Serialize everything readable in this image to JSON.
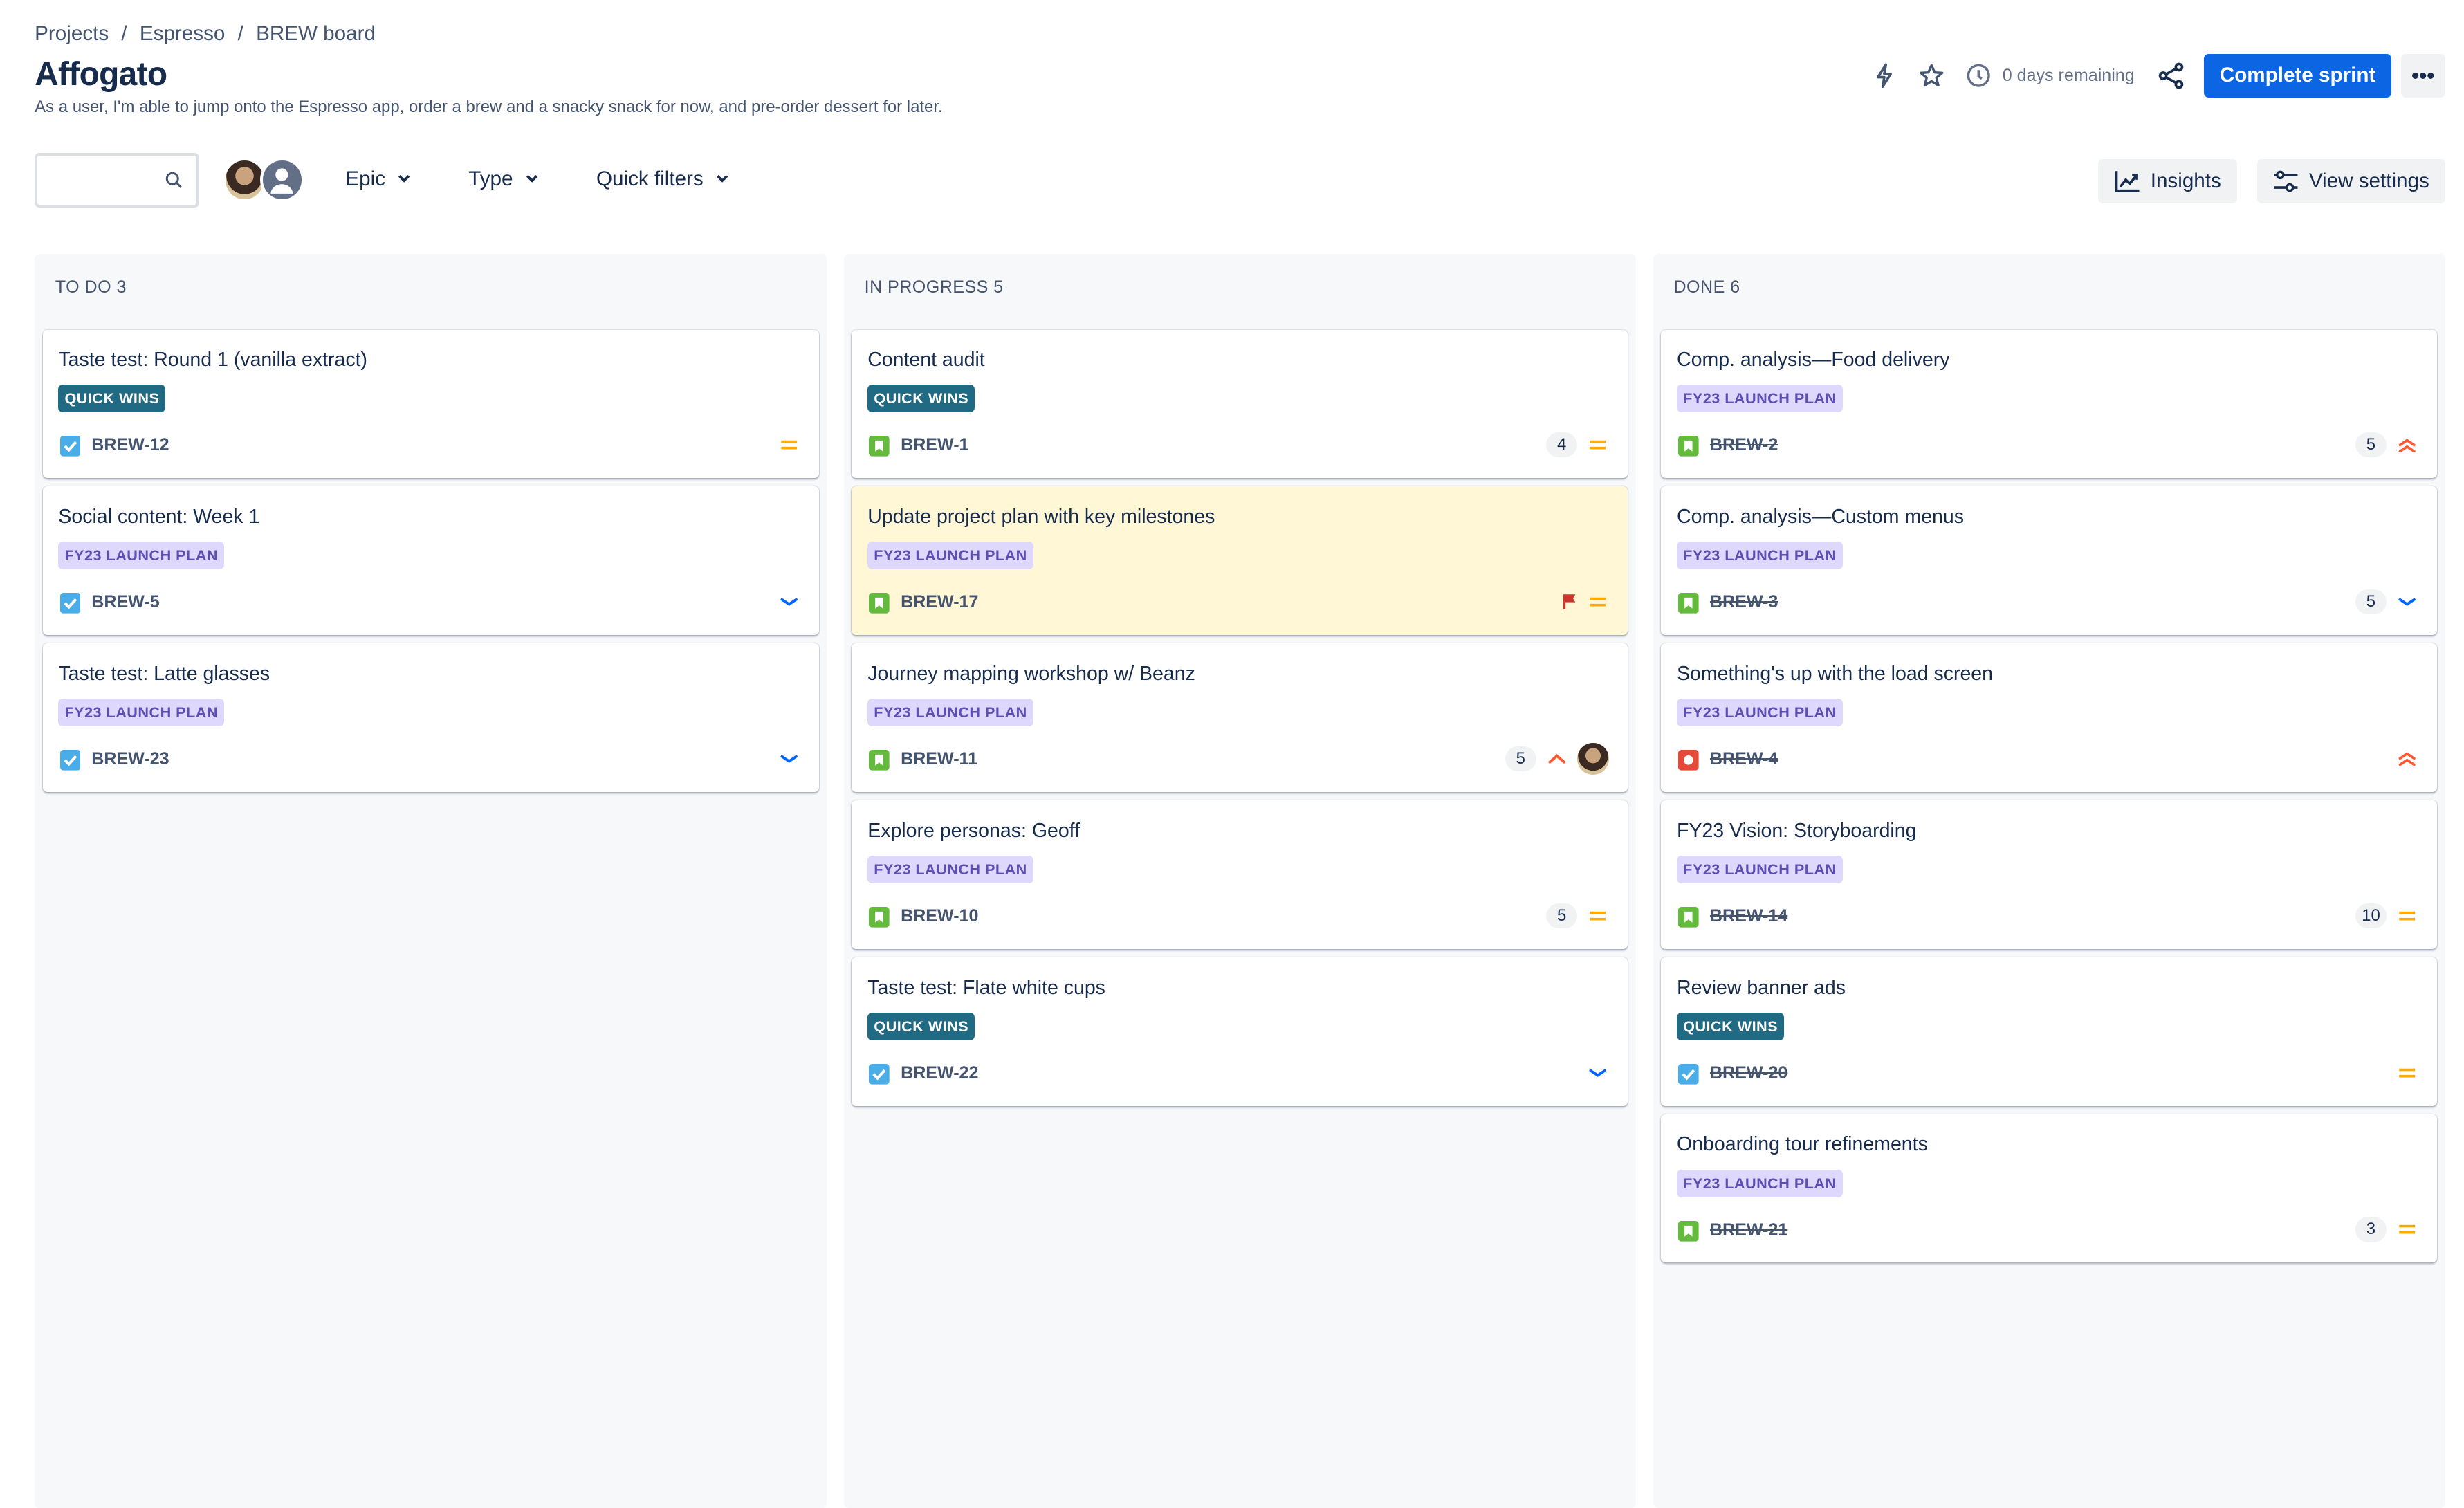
{
  "breadcrumb": [
    "Projects",
    "Espresso",
    "BREW board"
  ],
  "breadcrumb_sep": "/",
  "title": "Affogato",
  "description": "As a user, I'm able to jump onto the Espresso app, order a brew and a snacky snack for now, and pre-order dessert for later.",
  "header": {
    "days_remaining": "0 days remaining",
    "complete_sprint": "Complete sprint",
    "more": "•••"
  },
  "toolbar": {
    "search_value": "",
    "filters": [
      "Epic",
      "Type",
      "Quick filters"
    ],
    "insights": "Insights",
    "view_settings": "View settings"
  },
  "colors": {
    "primary": "#0c66e4",
    "quick_wins": "#206a83",
    "fy23": "#dfd8fd",
    "story": "#63ba3c",
    "task": "#4bade8",
    "bug": "#e5493a",
    "medium": "#ffab00",
    "low": "#0065ff",
    "high": "#ff5630",
    "flag_bg": "#fff7d6"
  },
  "columns": [
    {
      "label": "TO DO 3",
      "cards": [
        {
          "title": "Taste test: Round 1 (vanilla extract)",
          "epic": "QUICK WINS",
          "key": "BREW-12",
          "type": "task",
          "priority": "medium",
          "estimate": "",
          "flagged": false,
          "assignee": false,
          "done": false
        },
        {
          "title": "Social content: Week 1",
          "epic": "FY23 LAUNCH PLAN",
          "key": "BREW-5",
          "type": "task",
          "priority": "low",
          "estimate": "",
          "flagged": false,
          "assignee": false,
          "done": false
        },
        {
          "title": "Taste test: Latte glasses",
          "epic": "FY23 LAUNCH PLAN",
          "key": "BREW-23",
          "type": "task",
          "priority": "low",
          "estimate": "",
          "flagged": false,
          "assignee": false,
          "done": false
        }
      ]
    },
    {
      "label": "IN PROGRESS 5",
      "cards": [
        {
          "title": "Content audit",
          "epic": "QUICK WINS",
          "key": "BREW-1",
          "type": "story",
          "priority": "medium",
          "estimate": "4",
          "flagged": false,
          "assignee": false,
          "done": false
        },
        {
          "title": "Update project plan with key milestones",
          "epic": "FY23 LAUNCH PLAN",
          "key": "BREW-17",
          "type": "story",
          "priority": "medium",
          "estimate": "",
          "flagged": true,
          "assignee": false,
          "done": false
        },
        {
          "title": "Journey mapping workshop w/ Beanz",
          "epic": "FY23 LAUNCH PLAN",
          "key": "BREW-11",
          "type": "story",
          "priority": "high",
          "estimate": "5",
          "flagged": false,
          "assignee": true,
          "done": false
        },
        {
          "title": "Explore personas: Geoff",
          "epic": "FY23 LAUNCH PLAN",
          "key": "BREW-10",
          "type": "story",
          "priority": "medium",
          "estimate": "5",
          "flagged": false,
          "assignee": false,
          "done": false
        },
        {
          "title": "Taste test: Flate white cups",
          "epic": "QUICK WINS",
          "key": "BREW-22",
          "type": "task",
          "priority": "low",
          "estimate": "",
          "flagged": false,
          "assignee": false,
          "done": false
        }
      ]
    },
    {
      "label": "DONE 6",
      "cards": [
        {
          "title": "Comp. analysis—Food delivery",
          "epic": "FY23 LAUNCH PLAN",
          "key": "BREW-2",
          "type": "story",
          "priority": "highest",
          "estimate": "5",
          "flagged": false,
          "assignee": false,
          "done": true
        },
        {
          "title": "Comp. analysis—Custom menus",
          "epic": "FY23 LAUNCH PLAN",
          "key": "BREW-3",
          "type": "story",
          "priority": "low",
          "estimate": "5",
          "flagged": false,
          "assignee": false,
          "done": true
        },
        {
          "title": "Something's up with the load screen",
          "epic": "FY23 LAUNCH PLAN",
          "key": "BREW-4",
          "type": "bug",
          "priority": "highest",
          "estimate": "",
          "flagged": false,
          "assignee": false,
          "done": true
        },
        {
          "title": "FY23 Vision: Storyboarding",
          "epic": "FY23 LAUNCH PLAN",
          "key": "BREW-14",
          "type": "story",
          "priority": "medium",
          "estimate": "10",
          "flagged": false,
          "assignee": false,
          "done": true
        },
        {
          "title": "Review banner ads",
          "epic": "QUICK WINS",
          "key": "BREW-20",
          "type": "task",
          "priority": "medium",
          "estimate": "",
          "flagged": false,
          "assignee": false,
          "done": true
        },
        {
          "title": "Onboarding tour refinements",
          "epic": "FY23 LAUNCH PLAN",
          "key": "BREW-21",
          "type": "story",
          "priority": "medium",
          "estimate": "3",
          "flagged": false,
          "assignee": false,
          "done": true
        }
      ]
    }
  ]
}
